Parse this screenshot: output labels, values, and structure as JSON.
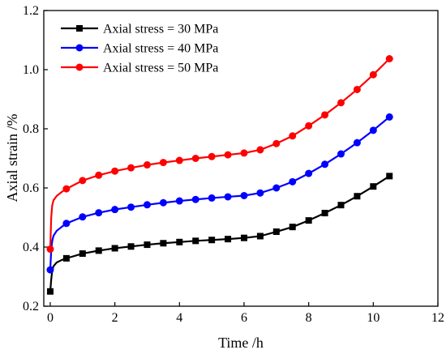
{
  "chart_data": {
    "type": "line",
    "title": "",
    "xlabel": "Time /h",
    "ylabel": "Axial strain /%",
    "xlim": [
      -0.2,
      12
    ],
    "ylim": [
      0.2,
      1.2
    ],
    "xticks": [
      0,
      2,
      4,
      6,
      8,
      10,
      12
    ],
    "yticks": [
      0.2,
      0.4,
      0.6,
      0.8,
      1.0,
      1.2
    ],
    "xtick_labels": [
      "0",
      "2",
      "4",
      "6",
      "8",
      "10",
      "12"
    ],
    "ytick_labels": [
      "0.2",
      "0.4",
      "0.6",
      "0.8",
      "1.0",
      "1.2"
    ],
    "grid": false,
    "legend_position": "top-left",
    "series": [
      {
        "name": "Axial stress = 30 MPa",
        "color": "#000000",
        "marker": "square",
        "curve_start": {
          "x": 0.0,
          "y": 0.25
        },
        "curve": [
          [
            0.03,
            0.29
          ],
          [
            0.06,
            0.32
          ],
          [
            0.1,
            0.335
          ],
          [
            0.2,
            0.348
          ],
          [
            0.35,
            0.356
          ]
        ],
        "points": [
          [
            0.0,
            0.25
          ],
          [
            0.5,
            0.362
          ],
          [
            1.0,
            0.378
          ],
          [
            1.5,
            0.388
          ],
          [
            2.0,
            0.396
          ],
          [
            2.5,
            0.402
          ],
          [
            3.0,
            0.408
          ],
          [
            3.5,
            0.413
          ],
          [
            4.0,
            0.417
          ],
          [
            4.5,
            0.421
          ],
          [
            5.0,
            0.424
          ],
          [
            5.5,
            0.427
          ],
          [
            6.0,
            0.431
          ],
          [
            6.5,
            0.437
          ],
          [
            7.0,
            0.452
          ],
          [
            7.5,
            0.468
          ],
          [
            8.0,
            0.49
          ],
          [
            8.5,
            0.515
          ],
          [
            9.0,
            0.542
          ],
          [
            9.5,
            0.572
          ],
          [
            10.0,
            0.605
          ],
          [
            10.5,
            0.64
          ]
        ]
      },
      {
        "name": "Axial stress = 40 MPa",
        "color": "#0000ff",
        "marker": "circle",
        "curve_start": {
          "x": 0.0,
          "y": 0.323
        },
        "curve": [
          [
            0.03,
            0.39
          ],
          [
            0.06,
            0.42
          ],
          [
            0.1,
            0.438
          ],
          [
            0.2,
            0.455
          ],
          [
            0.35,
            0.468
          ]
        ],
        "points": [
          [
            0.0,
            0.323
          ],
          [
            0.5,
            0.48
          ],
          [
            1.0,
            0.502
          ],
          [
            1.5,
            0.516
          ],
          [
            2.0,
            0.527
          ],
          [
            2.5,
            0.535
          ],
          [
            3.0,
            0.543
          ],
          [
            3.5,
            0.55
          ],
          [
            4.0,
            0.556
          ],
          [
            4.5,
            0.561
          ],
          [
            5.0,
            0.566
          ],
          [
            5.5,
            0.57
          ],
          [
            6.0,
            0.574
          ],
          [
            6.5,
            0.583
          ],
          [
            7.0,
            0.6
          ],
          [
            7.5,
            0.621
          ],
          [
            8.0,
            0.649
          ],
          [
            8.5,
            0.68
          ],
          [
            9.0,
            0.715
          ],
          [
            9.5,
            0.753
          ],
          [
            10.0,
            0.795
          ],
          [
            10.5,
            0.84
          ]
        ]
      },
      {
        "name": "Axial stress = 50 MPa",
        "color": "#ff0000",
        "marker": "circle",
        "curve_start": {
          "x": 0.0,
          "y": 0.393
        },
        "curve": [
          [
            0.03,
            0.5
          ],
          [
            0.06,
            0.54
          ],
          [
            0.1,
            0.558
          ],
          [
            0.2,
            0.573
          ],
          [
            0.35,
            0.586
          ]
        ],
        "points": [
          [
            0.0,
            0.393
          ],
          [
            0.5,
            0.597
          ],
          [
            1.0,
            0.625
          ],
          [
            1.5,
            0.643
          ],
          [
            2.0,
            0.657
          ],
          [
            2.5,
            0.668
          ],
          [
            3.0,
            0.678
          ],
          [
            3.5,
            0.686
          ],
          [
            4.0,
            0.693
          ],
          [
            4.5,
            0.7
          ],
          [
            5.0,
            0.706
          ],
          [
            5.5,
            0.712
          ],
          [
            6.0,
            0.718
          ],
          [
            6.5,
            0.729
          ],
          [
            7.0,
            0.75
          ],
          [
            7.5,
            0.776
          ],
          [
            8.0,
            0.81
          ],
          [
            8.5,
            0.847
          ],
          [
            9.0,
            0.888
          ],
          [
            9.5,
            0.933
          ],
          [
            10.0,
            0.983
          ],
          [
            10.5,
            1.037
          ]
        ]
      }
    ]
  }
}
